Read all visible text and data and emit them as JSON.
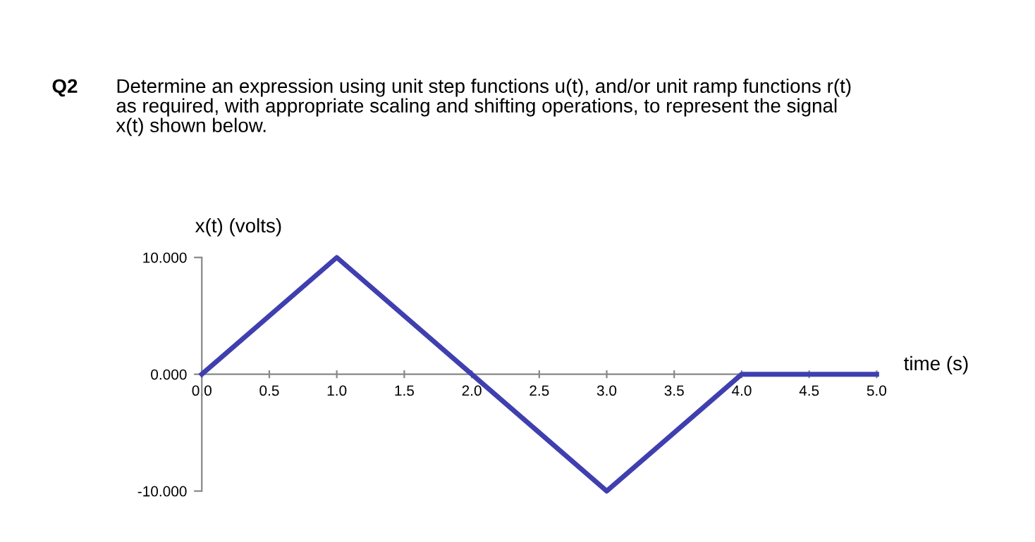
{
  "chart_data": {
    "type": "line",
    "annotations": [
      "Q2",
      "Determine an expression using unit step functions u(t), and/or unit ramp functions r(t)\nas required, with appropriate scaling and shifting operations, to represent the signal\nx(t) shown below."
    ],
    "ylabel": "x(t) (volts)",
    "xlabel": "time (s)",
    "x": [
      0,
      1,
      3,
      4,
      5
    ],
    "series": [
      {
        "color": "#3f3fb0",
        "values": [
          0,
          10,
          -10,
          0,
          0
        ]
      }
    ],
    "xlim": [
      0,
      5
    ],
    "ylim": [
      -10,
      10
    ],
    "xticks": [
      {
        "value": 0,
        "label": "0.0"
      },
      {
        "value": 0.5,
        "label": "0.5"
      },
      {
        "value": 1,
        "label": "1.0"
      },
      {
        "value": 1.5,
        "label": "1.5"
      },
      {
        "value": 2,
        "label": "2.0"
      },
      {
        "value": 2.5,
        "label": "2.5"
      },
      {
        "value": 3,
        "label": "3.0"
      },
      {
        "value": 3.5,
        "label": "3.5"
      },
      {
        "value": 4,
        "label": "4.0"
      },
      {
        "value": 4.5,
        "label": "4.5"
      },
      {
        "value": 5,
        "label": "5.0"
      }
    ],
    "yticks": [
      {
        "value": -10,
        "label": "-10.000"
      },
      {
        "value": 0,
        "label": "0.000"
      },
      {
        "value": 10,
        "label": "10.000"
      }
    ],
    "grid": false,
    "legend": false,
    "marker": "none",
    "line_style": "solid"
  }
}
